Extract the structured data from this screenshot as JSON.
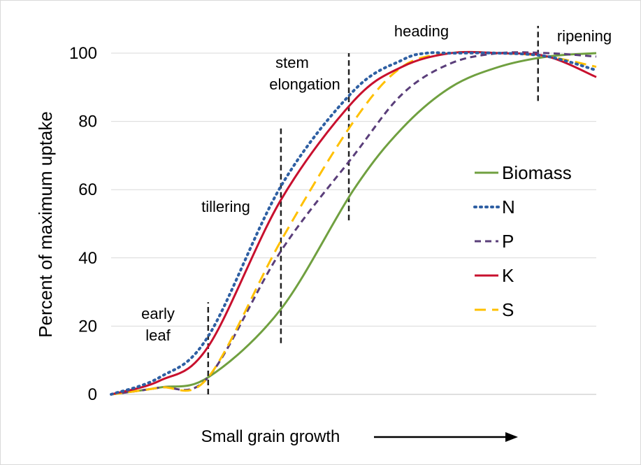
{
  "chart_data": {
    "type": "line",
    "title": "",
    "xlabel": "Small grain growth",
    "ylabel": "Percent of maximum uptake",
    "xlim": [
      0,
      100
    ],
    "ylim": [
      0,
      100
    ],
    "y_ticks": [
      "0",
      "20",
      "40",
      "60",
      "80",
      "100"
    ],
    "grid": "horizontal",
    "legend_position": "right",
    "series": [
      {
        "name": "Biomass",
        "color": "#70a040",
        "dash": "solid",
        "x": [
          0,
          10,
          20,
          35,
          50,
          60,
          70,
          80,
          90,
          100
        ],
        "y": [
          0,
          2,
          5,
          25,
          60,
          78,
          90,
          96,
          99,
          100
        ]
      },
      {
        "name": "N",
        "color": "#2e5fa3",
        "dash": "dotted",
        "x": [
          0,
          10,
          20,
          35,
          50,
          60,
          65,
          70,
          80,
          90,
          100
        ],
        "y": [
          0,
          5,
          17,
          61,
          89,
          98,
          100,
          100,
          100,
          99,
          95
        ]
      },
      {
        "name": "P",
        "color": "#5a3e7a",
        "dash": "dashed",
        "x": [
          0,
          10,
          20,
          35,
          50,
          60,
          70,
          80,
          90,
          100
        ],
        "y": [
          0,
          2,
          5,
          42,
          70,
          88,
          97,
          100,
          100,
          99
        ]
      },
      {
        "name": "K",
        "color": "#c8102e",
        "dash": "solid",
        "x": [
          0,
          10,
          20,
          35,
          50,
          60,
          70,
          80,
          90,
          100
        ],
        "y": [
          0,
          4,
          14,
          57,
          86,
          96,
          100,
          100,
          99,
          93
        ]
      },
      {
        "name": "S",
        "color": "#ffc000",
        "dash": "longdash",
        "x": [
          0,
          10,
          20,
          35,
          50,
          60,
          70,
          80,
          90,
          100
        ],
        "y": [
          0,
          2,
          5,
          45,
          80,
          96,
          100,
          100,
          99,
          96
        ]
      }
    ],
    "stage_markers": [
      {
        "x": 20,
        "y_from": 0,
        "y_to": 27
      },
      {
        "x": 35,
        "y_from": 15,
        "y_to": 78
      },
      {
        "x": 49,
        "y_from": 51,
        "y_to": 100
      },
      {
        "x": 88,
        "y_from": 86,
        "y_to": 108
      }
    ],
    "annotations": {
      "early_leaf": [
        "early",
        "leaf"
      ],
      "tillering": [
        "tillering"
      ],
      "stem_elongation": [
        "stem",
        "elongation"
      ],
      "heading": [
        "heading"
      ],
      "ripening": [
        "ripening"
      ]
    },
    "x_arrow": true
  }
}
